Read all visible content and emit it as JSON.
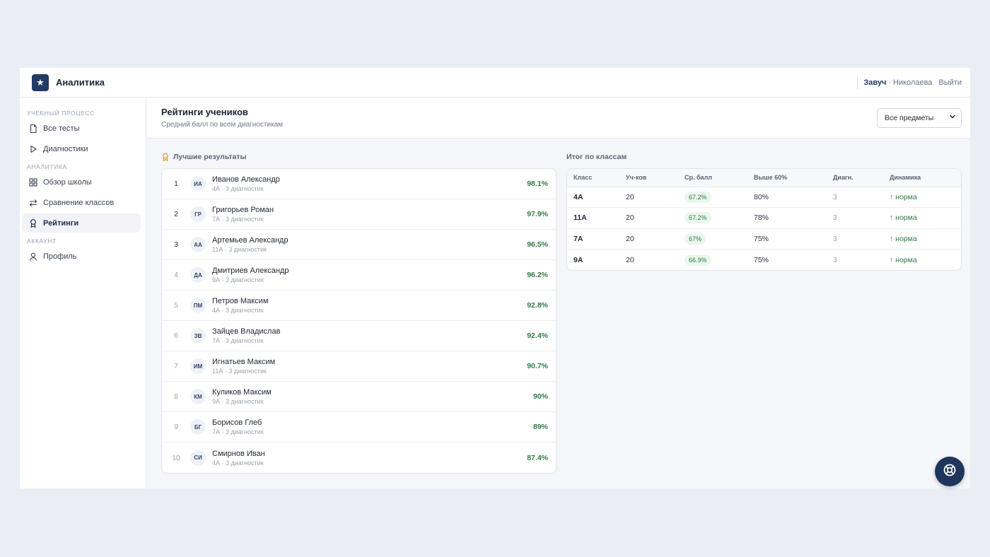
{
  "header": {
    "logo_icon": "star-icon",
    "brand": "Аналитика",
    "user_role": "Завуч",
    "user_sep": "·",
    "user_name": "Николаева",
    "logout": "Выйти"
  },
  "sidebar": {
    "sections": [
      {
        "title": "УЧЕБНЫЙ ПРОЦЕСС",
        "items": [
          {
            "label": "Все тесты",
            "icon": "document-icon",
            "active": false
          },
          {
            "label": "Диагностики",
            "icon": "play-icon",
            "active": false
          }
        ]
      },
      {
        "title": "АНАЛИТИКА",
        "items": [
          {
            "label": "Обзор школы",
            "icon": "grid-icon",
            "active": false
          },
          {
            "label": "Сравнение классов",
            "icon": "compare-arrows-icon",
            "active": false
          },
          {
            "label": "Рейтинги",
            "icon": "award-icon",
            "active": true
          }
        ]
      },
      {
        "title": "АККАУНТ",
        "items": [
          {
            "label": "Профиль",
            "icon": "user-icon",
            "active": false
          }
        ]
      }
    ]
  },
  "page": {
    "title": "Рейтинги учеников",
    "subtitle": "Средний балл по всем диагностикам",
    "subject_select": {
      "value": "Все предметы"
    }
  },
  "top_results": {
    "label": "Лучшие результаты",
    "students": [
      {
        "rank": "1",
        "initials": "ИА",
        "name": "Иванов Александр",
        "meta": "4А · 3 диагностик",
        "score": "98.1%"
      },
      {
        "rank": "2",
        "initials": "ГР",
        "name": "Григорьев Роман",
        "meta": "7А · 3 диагностик",
        "score": "97.9%"
      },
      {
        "rank": "3",
        "initials": "АА",
        "name": "Артемьев Александр",
        "meta": "11А · 3 диагностик",
        "score": "96.5%"
      },
      {
        "rank": "4",
        "initials": "ДА",
        "name": "Дмитриев Александр",
        "meta": "9А · 3 диагностик",
        "score": "96.2%"
      },
      {
        "rank": "5",
        "initials": "ПМ",
        "name": "Петров Максим",
        "meta": "4А · 3 диагностик",
        "score": "92.8%"
      },
      {
        "rank": "6",
        "initials": "ЗВ",
        "name": "Зайцев Владислав",
        "meta": "7А · 3 диагностик",
        "score": "92.4%"
      },
      {
        "rank": "7",
        "initials": "ИМ",
        "name": "Игнатьев Максим",
        "meta": "11А · 3 диагностик",
        "score": "90.7%"
      },
      {
        "rank": "8",
        "initials": "КМ",
        "name": "Куликов Максим",
        "meta": "9А · 3 диагностик",
        "score": "90%"
      },
      {
        "rank": "9",
        "initials": "БГ",
        "name": "Борисов Глеб",
        "meta": "7А · 3 диагностик",
        "score": "89%"
      },
      {
        "rank": "10",
        "initials": "СИ",
        "name": "Смирнов Иван",
        "meta": "4А · 3 диагностик",
        "score": "87.4%"
      }
    ]
  },
  "class_totals": {
    "label": "Итог по классам",
    "columns": [
      "Класс",
      "Уч-ков",
      "Ср. балл",
      "Выше 60%",
      "Диагн.",
      "Динамика"
    ],
    "rows": [
      {
        "class": "4А",
        "students": "20",
        "avg": "67.2%",
        "above60": "80%",
        "diag": "3",
        "dynamics": "↑ норма"
      },
      {
        "class": "11А",
        "students": "20",
        "avg": "67.2%",
        "above60": "78%",
        "diag": "3",
        "dynamics": "↑ норма"
      },
      {
        "class": "7А",
        "students": "20",
        "avg": "67%",
        "above60": "75%",
        "diag": "3",
        "dynamics": "↑ норма"
      },
      {
        "class": "9А",
        "students": "20",
        "avg": "66.9%",
        "above60": "75%",
        "diag": "3",
        "dynamics": "↑ норма"
      }
    ]
  },
  "help_fab": {
    "icon": "lifebuoy-icon"
  },
  "colors": {
    "accent": "#213a63",
    "score_green": "#2f7a45",
    "background": "#eaedf3"
  }
}
